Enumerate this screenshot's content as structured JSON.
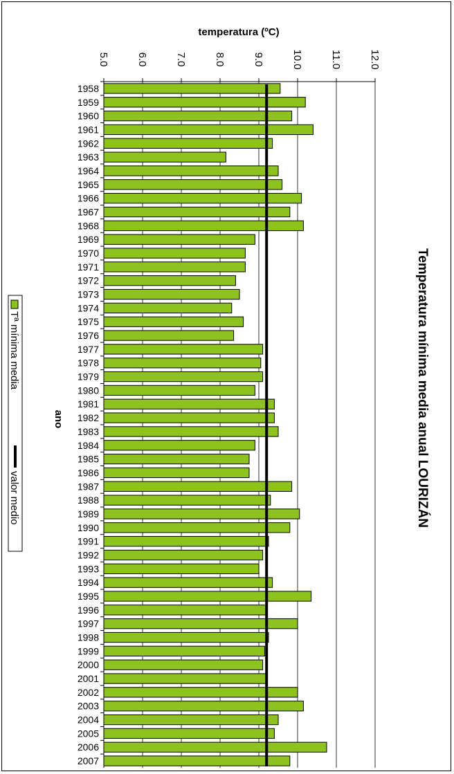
{
  "chart_data": {
    "type": "bar",
    "title": "Temperatura mínima media anual LOURIZÁN",
    "xlabel": "ano",
    "ylabel": "temperatura (ºC)",
    "ylim": [
      5.0,
      12.0
    ],
    "yticks": [
      "5.0",
      "6.0",
      "7.0",
      "8.0",
      "9.0",
      "10.0",
      "11.0",
      "12.0"
    ],
    "grid": true,
    "orientation": "rotated",
    "legend_position": "bottom",
    "categories": [
      "1958",
      "1959",
      "1960",
      "1961",
      "1962",
      "1963",
      "1964",
      "1965",
      "1966",
      "1967",
      "1968",
      "1969",
      "1970",
      "1971",
      "1972",
      "1973",
      "1974",
      "1975",
      "1976",
      "1977",
      "1978",
      "1979",
      "1980",
      "1981",
      "1982",
      "1983",
      "1984",
      "1985",
      "1986",
      "1987",
      "1988",
      "1989",
      "1990",
      "1991",
      "1992",
      "1993",
      "1994",
      "1995",
      "1996",
      "1997",
      "1998",
      "1999",
      "2000",
      "2001",
      "2002",
      "2003",
      "2004",
      "2005",
      "2006",
      "2007"
    ],
    "series": [
      {
        "name": "Tª mínima media",
        "type": "bar",
        "color": "#8dc21f",
        "values": [
          9.55,
          10.2,
          9.85,
          10.4,
          9.35,
          8.15,
          9.5,
          9.6,
          10.1,
          9.8,
          10.15,
          8.9,
          8.65,
          8.65,
          8.4,
          8.5,
          8.3,
          8.6,
          8.35,
          9.1,
          9.05,
          9.1,
          8.9,
          9.4,
          9.4,
          9.5,
          8.9,
          8.75,
          8.75,
          9.85,
          9.3,
          10.05,
          9.8,
          9.25,
          9.1,
          9.0,
          9.35,
          10.35,
          9.2,
          10.0,
          9.25,
          9.15,
          9.1,
          9.2,
          10.0,
          10.15,
          9.5,
          9.4,
          10.75,
          9.8
        ]
      },
      {
        "name": "valor medio",
        "type": "line",
        "color": "#000000",
        "values": [
          9.2,
          9.2,
          9.2,
          9.2,
          9.2,
          9.2,
          9.2,
          9.2,
          9.2,
          9.2,
          9.2,
          9.2,
          9.2,
          9.2,
          9.2,
          9.2,
          9.2,
          9.2,
          9.2,
          9.2,
          9.2,
          9.2,
          9.2,
          9.2,
          9.2,
          9.2,
          9.2,
          9.2,
          9.2,
          9.2,
          9.2,
          9.2,
          9.2,
          9.2,
          9.2,
          9.2,
          9.2,
          9.2,
          9.2,
          9.2,
          9.2,
          9.2,
          9.2,
          9.2,
          9.2,
          9.2,
          9.2,
          9.2,
          9.2,
          9.2
        ]
      }
    ]
  }
}
